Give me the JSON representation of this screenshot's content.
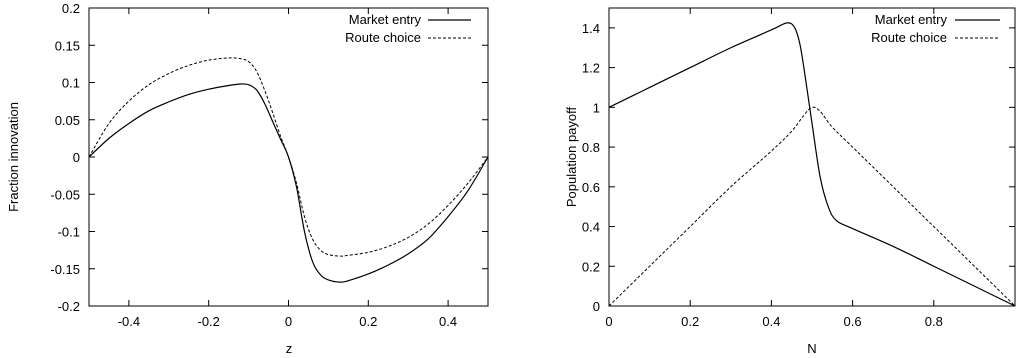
{
  "chart_data": [
    {
      "type": "line",
      "title": "",
      "xlabel": "z",
      "ylabel": "Fraction innovation",
      "xlim": [
        -0.5,
        0.5
      ],
      "ylim": [
        -0.2,
        0.2
      ],
      "xticks": [
        -0.4,
        -0.2,
        0,
        0.2,
        0.4
      ],
      "xtick_labels": [
        "-0.4",
        "-0.2",
        "0",
        "0.2",
        "0.4"
      ],
      "yticks": [
        -0.2,
        -0.15,
        -0.1,
        -0.05,
        0,
        0.05,
        0.1,
        0.15,
        0.2
      ],
      "ytick_labels": [
        "-0.2",
        "-0.15",
        "-0.1",
        "-0.05",
        "0",
        "0.05",
        "0.1",
        "0.15",
        "0.2"
      ],
      "grid": false,
      "legend": "top-right",
      "series": [
        {
          "name": "Market entry",
          "style": "solid",
          "x": [
            -0.5,
            -0.45,
            -0.4,
            -0.35,
            -0.3,
            -0.25,
            -0.2,
            -0.15,
            -0.12,
            -0.1,
            -0.08,
            -0.06,
            -0.04,
            -0.02,
            0,
            0.02,
            0.04,
            0.06,
            0.08,
            0.1,
            0.13,
            0.15,
            0.2,
            0.25,
            0.3,
            0.35,
            0.4,
            0.45,
            0.5
          ],
          "y": [
            0,
            0.025,
            0.045,
            0.062,
            0.074,
            0.084,
            0.091,
            0.096,
            0.098,
            0.097,
            0.09,
            0.072,
            0.048,
            0.024,
            0,
            -0.04,
            -0.1,
            -0.14,
            -0.158,
            -0.165,
            -0.168,
            -0.166,
            -0.157,
            -0.145,
            -0.13,
            -0.11,
            -0.08,
            -0.045,
            0
          ]
        },
        {
          "name": "Route choice",
          "style": "dashed",
          "x": [
            -0.5,
            -0.45,
            -0.4,
            -0.35,
            -0.3,
            -0.25,
            -0.2,
            -0.15,
            -0.12,
            -0.1,
            -0.08,
            -0.06,
            -0.04,
            -0.02,
            0,
            0.02,
            0.04,
            0.06,
            0.08,
            0.1,
            0.13,
            0.15,
            0.2,
            0.25,
            0.3,
            0.35,
            0.4,
            0.45,
            0.5
          ],
          "y": [
            0,
            0.045,
            0.075,
            0.097,
            0.112,
            0.123,
            0.13,
            0.133,
            0.132,
            0.128,
            0.115,
            0.09,
            0.06,
            0.028,
            0,
            -0.035,
            -0.08,
            -0.11,
            -0.125,
            -0.131,
            -0.133,
            -0.132,
            -0.128,
            -0.12,
            -0.108,
            -0.09,
            -0.065,
            -0.035,
            0
          ]
        }
      ]
    },
    {
      "type": "line",
      "title": "",
      "xlabel": "N",
      "ylabel": "Population payoff",
      "xlim": [
        0,
        1
      ],
      "ylim": [
        0,
        1.5
      ],
      "xticks": [
        0,
        0.2,
        0.4,
        0.6,
        0.8
      ],
      "xtick_labels": [
        "0",
        "0.2",
        "0.4",
        "0.6",
        "0.8"
      ],
      "yticks": [
        0,
        0.2,
        0.4,
        0.6,
        0.8,
        1,
        1.2,
        1.4
      ],
      "ytick_labels": [
        "0",
        "0.2",
        "0.4",
        "0.6",
        "0.8",
        "1",
        "1.2",
        "1.4"
      ],
      "grid": false,
      "legend": "top-right",
      "series": [
        {
          "name": "Market entry",
          "style": "solid",
          "x": [
            0,
            0.1,
            0.2,
            0.3,
            0.4,
            0.43,
            0.44,
            0.45,
            0.46,
            0.47,
            0.48,
            0.5,
            0.52,
            0.54,
            0.56,
            0.6,
            0.7,
            0.8,
            0.9,
            1
          ],
          "y": [
            1,
            1.1,
            1.2,
            1.3,
            1.39,
            1.42,
            1.425,
            1.42,
            1.39,
            1.32,
            1.2,
            0.92,
            0.65,
            0.5,
            0.43,
            0.39,
            0.3,
            0.2,
            0.1,
            0
          ]
        },
        {
          "name": "Route choice",
          "style": "dashed",
          "x": [
            0,
            0.1,
            0.2,
            0.3,
            0.4,
            0.45,
            0.48,
            0.5,
            0.52,
            0.55,
            0.6,
            0.7,
            0.8,
            0.9,
            1
          ],
          "y": [
            0,
            0.2,
            0.4,
            0.6,
            0.78,
            0.88,
            0.96,
            1.0,
            0.98,
            0.9,
            0.8,
            0.6,
            0.4,
            0.2,
            0
          ]
        }
      ]
    }
  ]
}
